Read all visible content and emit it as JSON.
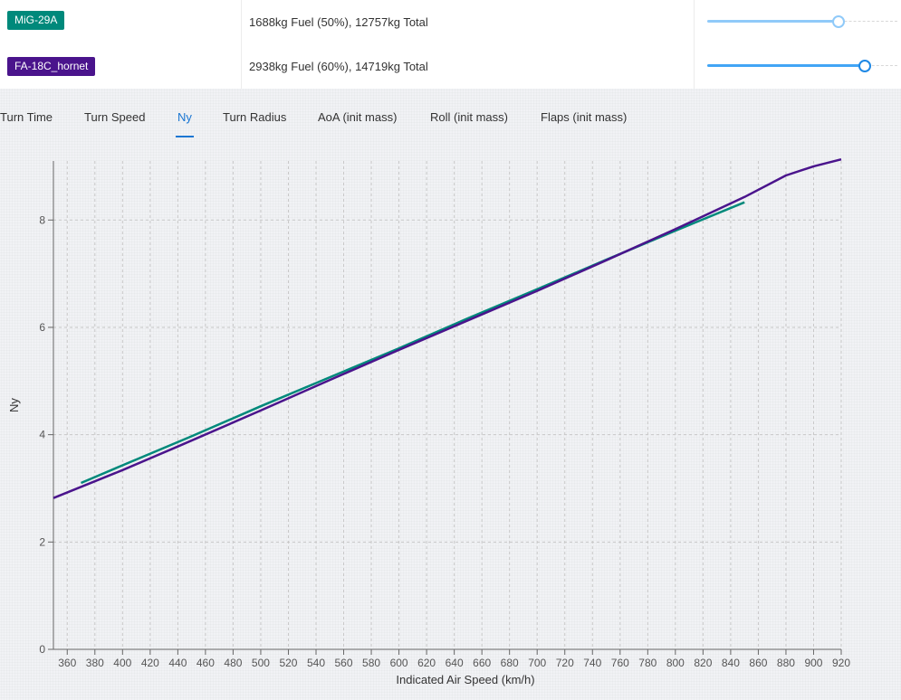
{
  "aircraft": [
    {
      "name": "MiG-29A",
      "color": "#00897b",
      "fuel_text": "1688kg Fuel (50%), 12757kg Total",
      "fuel_fraction": 0.5
    },
    {
      "name": "FA-18C_hornet",
      "color": "#4a148c",
      "fuel_text": "2938kg Fuel (60%), 14719kg Total",
      "fuel_fraction": 0.6
    }
  ],
  "tabs": [
    {
      "label": "Turn Time",
      "active": false
    },
    {
      "label": "Turn Speed",
      "active": false
    },
    {
      "label": "Ny",
      "active": true
    },
    {
      "label": "Turn Radius",
      "active": false
    },
    {
      "label": "AoA (init mass)",
      "active": false
    },
    {
      "label": "Roll (init mass)",
      "active": false
    },
    {
      "label": "Flaps (init mass)",
      "active": false
    }
  ],
  "chart_data": {
    "type": "line",
    "xlabel": "Indicated Air Speed (km/h)",
    "ylabel": "Ny",
    "xlim": [
      350,
      920
    ],
    "ylim": [
      0,
      9.1
    ],
    "x_ticks": [
      360,
      380,
      400,
      420,
      440,
      460,
      480,
      500,
      520,
      540,
      560,
      580,
      600,
      620,
      640,
      660,
      680,
      700,
      720,
      740,
      760,
      780,
      800,
      820,
      840,
      860,
      880,
      900,
      920
    ],
    "y_ticks": [
      0,
      2,
      4,
      6,
      8
    ],
    "grid": true,
    "series": [
      {
        "name": "MiG-29A",
        "color": "#00897b",
        "x": [
          370,
          400,
          450,
          500,
          550,
          600,
          650,
          700,
          750,
          800,
          850
        ],
        "y": [
          3.1,
          3.43,
          3.97,
          4.53,
          5.07,
          5.61,
          6.17,
          6.71,
          7.26,
          7.8,
          8.33
        ]
      },
      {
        "name": "FA-18C_hornet",
        "color": "#4a148c",
        "x": [
          350,
          400,
          440,
          500,
          550,
          600,
          650,
          700,
          750,
          800,
          850,
          880,
          900,
          920
        ],
        "y": [
          2.82,
          3.34,
          3.78,
          4.45,
          5.02,
          5.58,
          6.13,
          6.68,
          7.25,
          7.83,
          8.43,
          8.83,
          9.0,
          9.13
        ]
      }
    ]
  }
}
